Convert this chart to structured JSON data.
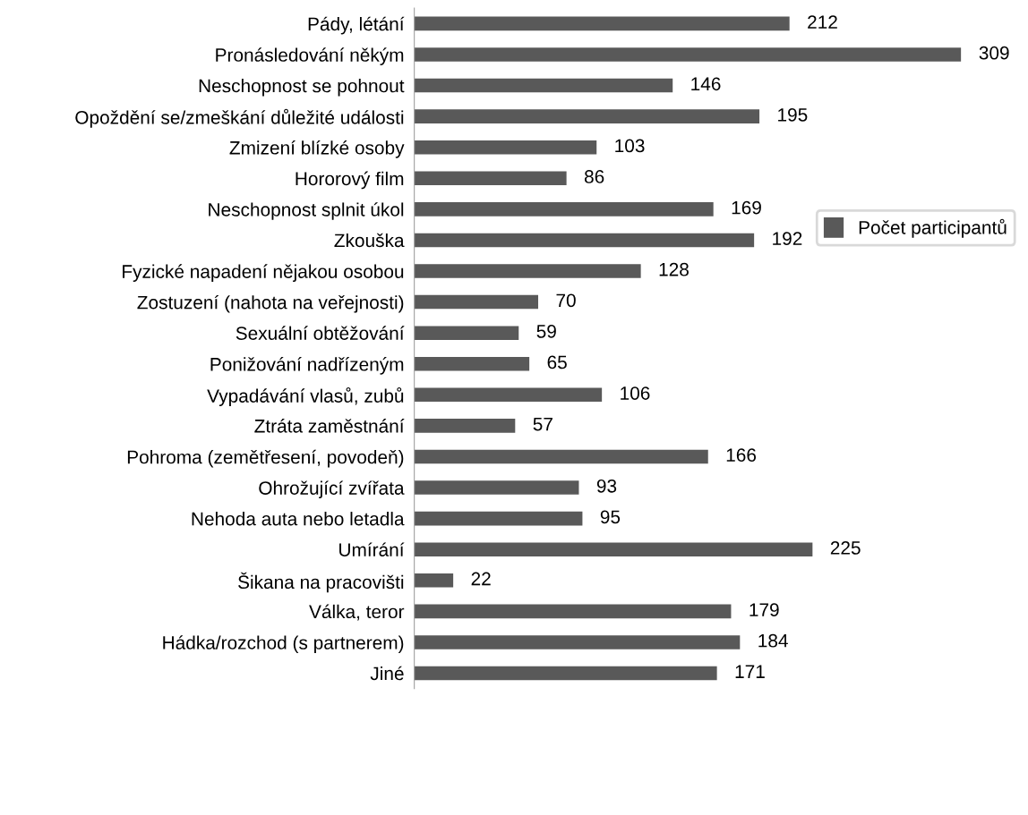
{
  "chart_data": {
    "type": "bar",
    "orientation": "horizontal",
    "categories": [
      "Pády, létání",
      "Pronásledování někým",
      "Neschopnost se pohnout",
      "Opoždění se/zmeškání důležité události",
      "Zmizení blízké osoby",
      "Hororový film",
      "Neschopnost splnit úkol",
      "Zkouška",
      "Fyzické napadení nějakou osobou",
      "Zostuzení (nahota na veřejnosti)",
      "Sexuální obtěžování",
      "Ponižování nadřízeným",
      "Vypadávání vlasů, zubů",
      "Ztráta zaměstnání",
      "Pohroma (zemětřesení, povodeň)",
      "Ohrožující zvířata",
      "Nehoda auta nebo letadla",
      "Umírání",
      "Šikana na pracovišti",
      "Válka, teror",
      "Hádka/rozchod (s partnerem)",
      "Jiné"
    ],
    "series": [
      {
        "name": "Počet participantů",
        "color": "#595959",
        "values": [
          212,
          309,
          146,
          195,
          103,
          86,
          169,
          192,
          128,
          70,
          59,
          65,
          106,
          57,
          166,
          93,
          95,
          225,
          22,
          179,
          184,
          171
        ]
      }
    ],
    "data_labels": true,
    "legend": "right",
    "tick_labels": "y",
    "grid": false
  }
}
